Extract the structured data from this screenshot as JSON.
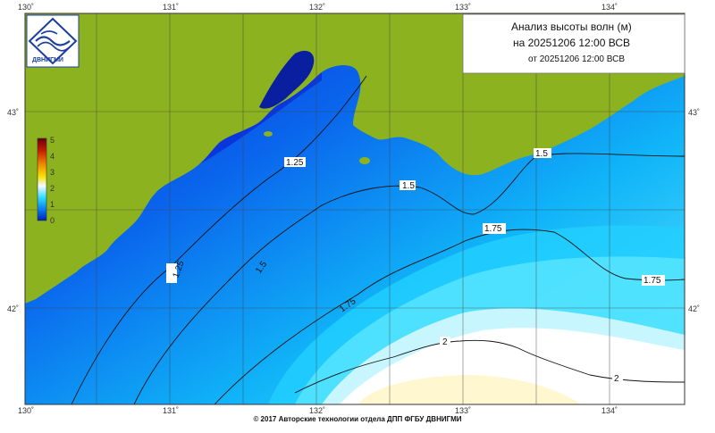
{
  "title": {
    "line1": "Анализ высоты волн (м)",
    "line2": "на 20251206 12:00 ВСВ",
    "line3": "от 20251206 12:00 ВСВ"
  },
  "logo": {
    "text": "ДВНИГМИ"
  },
  "colorbar": {
    "labels": [
      "5",
      "4",
      "3",
      "2",
      "1",
      "0"
    ],
    "colors": [
      "#7a0000",
      "#d62800",
      "#f4c400",
      "#e8f6ff",
      "#00c8f0",
      "#0030c8"
    ]
  },
  "axes": {
    "lon": [
      "130˚",
      "131˚",
      "132˚",
      "133˚",
      "134˚"
    ],
    "lat": [
      "43˚",
      "42˚"
    ]
  },
  "contours": [
    "1.25",
    "1.25",
    "1.5",
    "1.5",
    "1.5",
    "1.75",
    "1.75",
    "1.75",
    "2",
    "2"
  ],
  "footer": "© 2017 Авторские технологии отдела ДПП ФГБУ ДВНИГМИ",
  "colors": {
    "land": "#8cb21f",
    "coast_dark": "#0a1ea0",
    "sea_blue": "#0a5ae8",
    "sea_cyan": "#2ee0ff",
    "sea_white": "#ffffff",
    "sea_cream": "#fff7d0"
  }
}
